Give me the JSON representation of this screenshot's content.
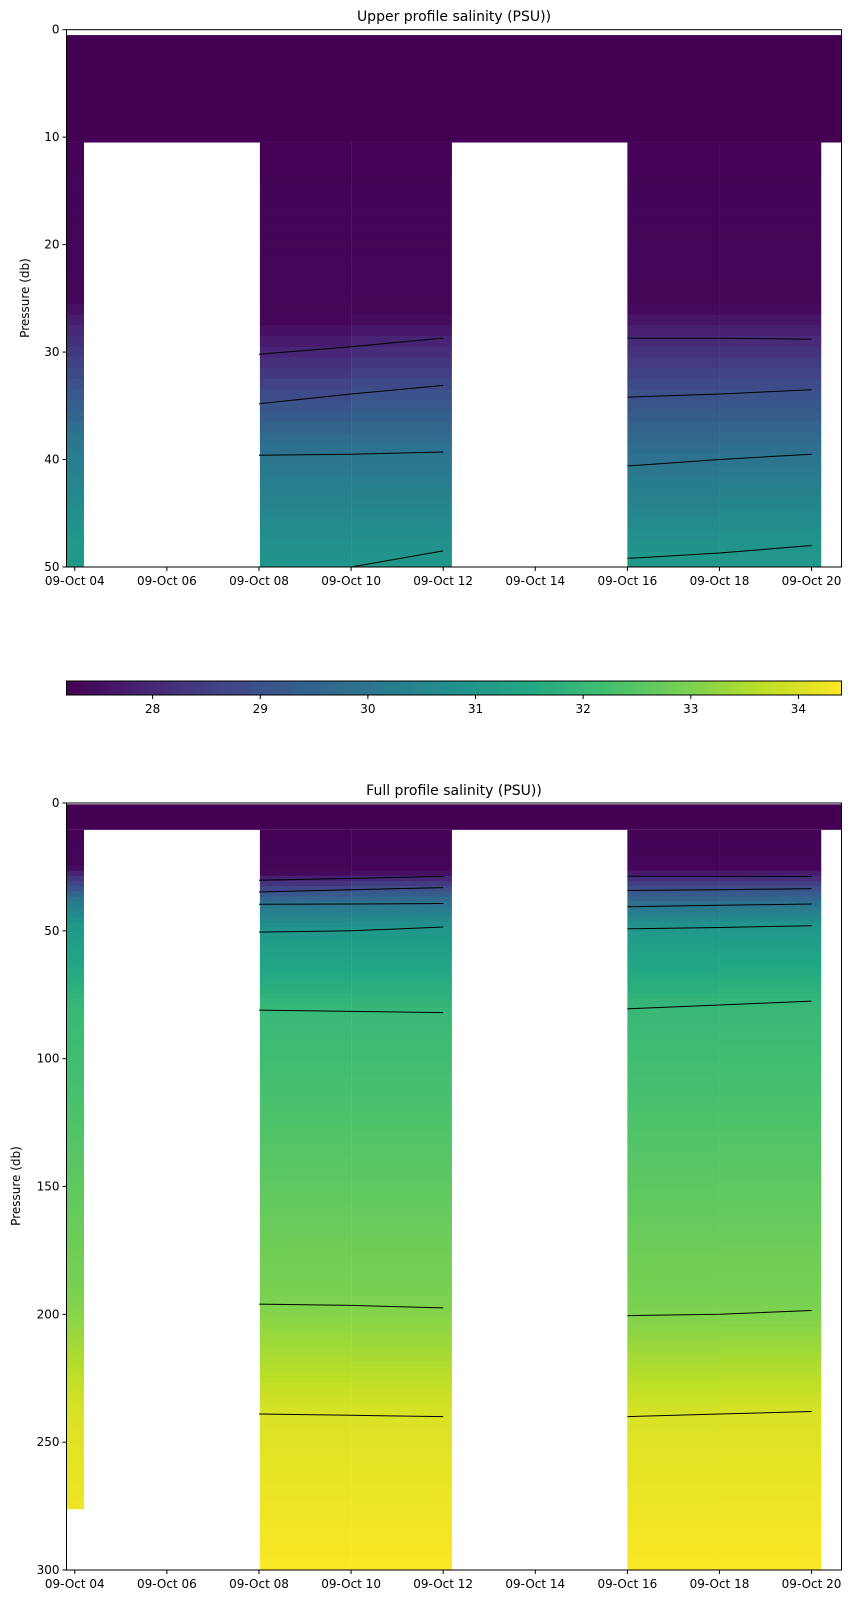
{
  "chart_data": [
    {
      "type": "heatmap",
      "title": "Upper profile salinity (PSU))",
      "xlabel": "",
      "ylabel": "Pressure (db)",
      "ylim": [
        50,
        0
      ],
      "yticks": [
        "0",
        "10",
        "20",
        "30",
        "40",
        "50"
      ],
      "xticks": [
        "09-Oct 04",
        "09-Oct 06",
        "09-Oct 08",
        "09-Oct 10",
        "09-Oct 12",
        "09-Oct 14",
        "09-Oct 16",
        "09-Oct 18",
        "09-Oct 20"
      ]
    },
    {
      "type": "heatmap",
      "title": "Full profile salinity (PSU))",
      "xlabel": "",
      "ylabel": "Pressure (db)",
      "ylim": [
        300,
        0
      ],
      "yticks": [
        "0",
        "50",
        "100",
        "150",
        "200",
        "250",
        "300"
      ],
      "xticks": [
        "09-Oct 04",
        "09-Oct 06",
        "09-Oct 08",
        "09-Oct 10",
        "09-Oct 12",
        "09-Oct 14",
        "09-Oct 16",
        "09-Oct 18",
        "09-Oct 20"
      ]
    }
  ],
  "shared": {
    "x_unit": "hours on 09-Oct",
    "xlim_hours": [
      3.82,
      20.65
    ],
    "colorbar": {
      "vmin": 27.2,
      "vmax": 34.4,
      "ticks": [
        "28",
        "29",
        "30",
        "31",
        "32",
        "33",
        "34"
      ],
      "colormap": "viridis"
    },
    "surface_band": {
      "depth": [
        0.5,
        10.5
      ],
      "salinity": 27.2
    },
    "contour_levels": [
      28,
      29,
      30,
      31,
      32,
      33,
      34
    ],
    "profiles": [
      {
        "time": 4,
        "cell": [
          3.82,
          4.2
        ],
        "max_depth": 276,
        "surface_salinity": 27.2,
        "iso_depths": [
          28.0,
          33.0,
          38.0,
          47.5,
          80,
          195,
          238
        ]
      },
      {
        "time": 8,
        "cell": [
          8.02,
          10.0
        ],
        "max_depth": 300,
        "surface_salinity": 27.2,
        "iso_depths": [
          30.2,
          34.8,
          39.6,
          50.5,
          81,
          196,
          239
        ]
      },
      {
        "time": 10,
        "cell": [
          10.0,
          12.19
        ],
        "max_depth": 300,
        "surface_salinity": 27.2,
        "iso_depths": [
          29.5,
          33.9,
          39.5,
          50.0,
          81.5,
          196.5,
          239.5
        ]
      },
      {
        "time": 12,
        "cell": null,
        "max_depth": 300,
        "surface_salinity": 27.2,
        "iso_depths": [
          28.7,
          33.1,
          39.3,
          48.5,
          82,
          197.5,
          240
        ]
      },
      {
        "time": 16,
        "cell": [
          16.0,
          18.0
        ],
        "max_depth": 300,
        "surface_salinity": 27.2,
        "iso_depths": [
          28.7,
          34.2,
          40.6,
          49.2,
          80.5,
          200.5,
          240
        ]
      },
      {
        "time": 18,
        "cell": [
          18.0,
          20.21
        ],
        "max_depth": 300,
        "surface_salinity": 27.2,
        "iso_depths": [
          28.7,
          33.9,
          40.0,
          48.7,
          79,
          200,
          239
        ]
      },
      {
        "time": 20,
        "cell": null,
        "max_depth": 300,
        "surface_salinity": 27.2,
        "iso_depths": [
          28.8,
          33.5,
          39.5,
          48.0,
          77.5,
          198.5,
          238
        ]
      }
    ],
    "contour_groups": [
      [
        8,
        10,
        12
      ],
      [
        16,
        18,
        20
      ]
    ],
    "bottom_salinity": 34.38
  }
}
